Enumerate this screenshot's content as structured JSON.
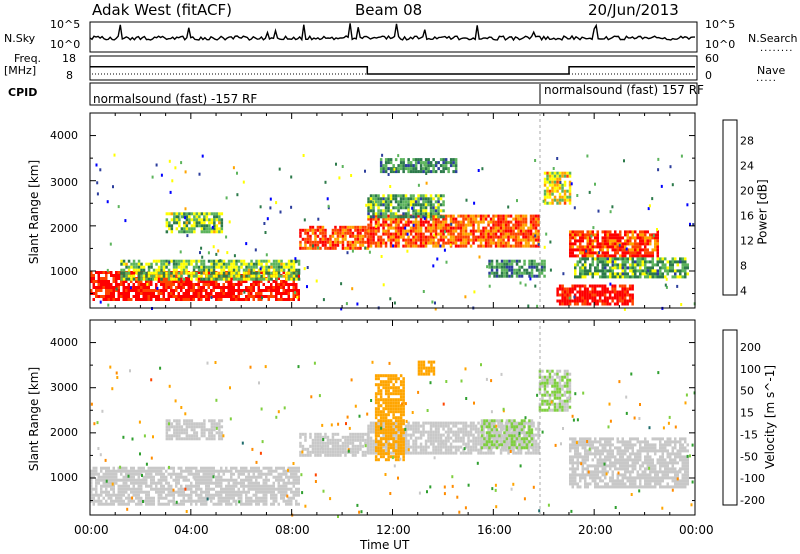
{
  "header": {
    "station": "Adak West (fitACF)",
    "beam": "Beam 08",
    "date": "20/Jun/2013"
  },
  "strip": {
    "nsky_label": "N.Sky",
    "nsky_ticks": [
      "10^5",
      "10^0"
    ],
    "nsearch_label": "N.Search",
    "nsearch_ticks": [
      "10^5",
      "10^0"
    ],
    "freq_label_1": "Freq.",
    "freq_label_2": "[MHz]",
    "freq_ticks": [
      "18",
      "8"
    ],
    "nave_label": "Nave",
    "nave_ticks": [
      "60",
      "0"
    ],
    "cpid_label": "CPID",
    "cpid_segments": [
      {
        "text": "normalsound (fast) -157 RF",
        "start_hour": 0
      },
      {
        "text": "normalsound (fast) 157 RF",
        "start_hour": 18
      }
    ],
    "freq_mhz_steps": [
      {
        "from_hour": 0,
        "to_hour": 11,
        "value": 13.5
      },
      {
        "from_hour": 11,
        "to_hour": 19,
        "value": 10.5
      },
      {
        "from_hour": 19,
        "to_hour": 24,
        "value": 13.5
      }
    ]
  },
  "chart_data": [
    {
      "type": "heatmap",
      "panel": "power",
      "ylabel": "Slant Range [km]",
      "ylim": [
        180,
        4500
      ],
      "yticks": [
        "1000",
        "2000",
        "3000",
        "4000"
      ],
      "xlim_hours": [
        0,
        24
      ],
      "colorbar": {
        "label": "Power [dB]",
        "ticks": [
          "28",
          "24",
          "20",
          "16",
          "12",
          "8",
          "4"
        ],
        "range": [
          0,
          30
        ],
        "colors": [
          "#0000ff",
          "#2c3e9c",
          "#2c7a4a",
          "#5cb45c",
          "#ffff00",
          "#ffa500",
          "#ff4500",
          "#ff0000"
        ]
      },
      "echo_bands": [
        {
          "from_hour": 0.0,
          "to_hour": 8.3,
          "range_km": [
            400,
            1000
          ],
          "power_db": 28
        },
        {
          "from_hour": 1.2,
          "to_hour": 8.3,
          "range_km": [
            850,
            1250
          ],
          "power_db": 14
        },
        {
          "from_hour": 3.0,
          "to_hour": 5.2,
          "range_km": [
            1900,
            2300
          ],
          "power_db": 14
        },
        {
          "from_hour": 8.3,
          "to_hour": 11.0,
          "range_km": [
            1500,
            2000
          ],
          "power_db": 24
        },
        {
          "from_hour": 11.0,
          "to_hour": 17.8,
          "range_km": [
            1550,
            2250
          ],
          "power_db": 24
        },
        {
          "from_hour": 11.0,
          "to_hour": 14.0,
          "range_km": [
            2200,
            2700
          ],
          "power_db": 12
        },
        {
          "from_hour": 11.5,
          "to_hour": 14.5,
          "range_km": [
            3200,
            3500
          ],
          "power_db": 10
        },
        {
          "from_hour": 15.8,
          "to_hour": 18.0,
          "range_km": [
            900,
            1250
          ],
          "power_db": 10
        },
        {
          "from_hour": 18.0,
          "to_hour": 19.0,
          "range_km": [
            2500,
            3200
          ],
          "power_db": 18
        },
        {
          "from_hour": 19.0,
          "to_hour": 22.5,
          "range_km": [
            1350,
            1900
          ],
          "power_db": 26
        },
        {
          "from_hour": 19.2,
          "to_hour": 23.7,
          "range_km": [
            850,
            1300
          ],
          "power_db": 12
        },
        {
          "from_hour": 18.5,
          "to_hour": 21.5,
          "range_km": [
            300,
            700
          ],
          "power_db": 28
        }
      ]
    },
    {
      "type": "heatmap",
      "panel": "velocity",
      "ylabel": "Slant Range [km]",
      "ylim": [
        180,
        4500
      ],
      "yticks": [
        "1000",
        "2000",
        "3000",
        "4000"
      ],
      "xlabel": "Time UT",
      "xticks": [
        "00:00",
        "04:00",
        "08:00",
        "12:00",
        "16:00",
        "20:00",
        "00:00"
      ],
      "xlim_hours": [
        0,
        24
      ],
      "colorbar": {
        "label": "Velocity [m s^-1]",
        "ticks": [
          "200",
          "100",
          "50",
          "15",
          "-15",
          "-50",
          "-100",
          "-200"
        ],
        "range": [
          -250,
          250
        ],
        "colors": [
          "#ff0000",
          "#ff4500",
          "#ff8c00",
          "#ffa500",
          "#c8c8c8",
          "#7fcf3f",
          "#2f9f2f",
          "#1e6b6b",
          "#2020c0"
        ]
      },
      "echo_bands": [
        {
          "from_hour": 0.0,
          "to_hour": 8.3,
          "range_km": [
            400,
            1250
          ],
          "velocity": 0
        },
        {
          "from_hour": 3.0,
          "to_hour": 5.2,
          "range_km": [
            1900,
            2300
          ],
          "velocity": 0
        },
        {
          "from_hour": 8.3,
          "to_hour": 11.0,
          "range_km": [
            1500,
            2000
          ],
          "velocity": 0
        },
        {
          "from_hour": 11.0,
          "to_hour": 17.8,
          "range_km": [
            1550,
            2250
          ],
          "velocity": 0
        },
        {
          "from_hour": 11.3,
          "to_hour": 12.4,
          "range_km": [
            1400,
            3300
          ],
          "velocity": -60
        },
        {
          "from_hour": 13.0,
          "to_hour": 13.6,
          "range_km": [
            3300,
            3600
          ],
          "velocity": -60
        },
        {
          "from_hour": 15.5,
          "to_hour": 17.5,
          "range_km": [
            1700,
            2300
          ],
          "velocity": 30
        },
        {
          "from_hour": 17.8,
          "to_hour": 19.0,
          "range_km": [
            2500,
            3400
          ],
          "velocity": 30
        },
        {
          "from_hour": 19.0,
          "to_hour": 23.7,
          "range_km": [
            800,
            1900
          ],
          "velocity": 0
        }
      ]
    }
  ]
}
